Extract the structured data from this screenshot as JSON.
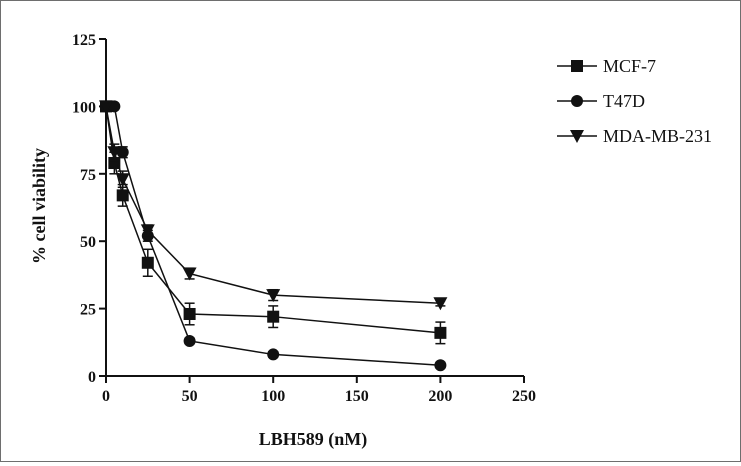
{
  "chart_data": {
    "type": "line",
    "xlabel": "LBH589 (nM)",
    "ylabel": "% cell viability",
    "xlim": [
      0,
      250
    ],
    "ylim": [
      0,
      125
    ],
    "x_ticks": [
      0,
      50,
      100,
      150,
      200,
      250
    ],
    "y_ticks": [
      0,
      25,
      50,
      75,
      100,
      125
    ],
    "grid": false,
    "legend_position": "top-right",
    "series": [
      {
        "name": "MCF-7",
        "marker": "square",
        "x": [
          0,
          5,
          10,
          25,
          50,
          100,
          200
        ],
        "y": [
          100,
          79,
          67,
          42,
          23,
          22,
          16
        ],
        "err": [
          0,
          4,
          4,
          5,
          4,
          4,
          4
        ]
      },
      {
        "name": "T47D",
        "marker": "circle",
        "x": [
          0,
          5,
          10,
          25,
          50,
          100,
          200
        ],
        "y": [
          100,
          100,
          83,
          52,
          13,
          8,
          4
        ],
        "err": [
          0,
          0,
          2,
          2,
          1,
          1,
          1
        ]
      },
      {
        "name": "MDA-MB-231",
        "marker": "triangle-down",
        "x": [
          0,
          5,
          10,
          25,
          50,
          100,
          200
        ],
        "y": [
          100,
          83,
          73,
          54,
          38,
          30,
          27
        ],
        "err": [
          0,
          3,
          3,
          2,
          2,
          2,
          1
        ]
      }
    ]
  }
}
